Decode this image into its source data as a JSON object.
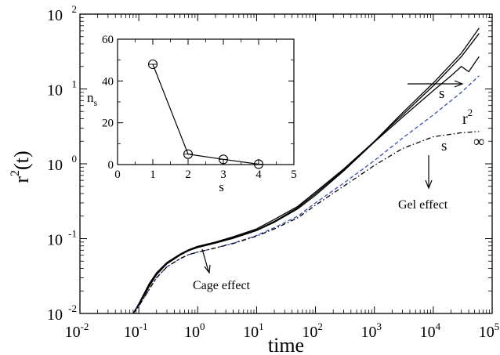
{
  "chart_data": [
    {
      "type": "line",
      "xlabel": "time",
      "ylabel_base": "r",
      "ylabel_sup": "2",
      "ylabel_tail": "(t)",
      "xscale": "log",
      "yscale": "log",
      "xlim": [
        0.01,
        100000
      ],
      "ylim": [
        0.01,
        100
      ],
      "x_ticks": [
        {
          "base": "10",
          "exp": "-2"
        },
        {
          "base": "10",
          "exp": "-1"
        },
        {
          "base": "10",
          "exp": "0"
        },
        {
          "base": "10",
          "exp": "1"
        },
        {
          "base": "10",
          "exp": "2"
        },
        {
          "base": "10",
          "exp": "3"
        },
        {
          "base": "10",
          "exp": "4"
        },
        {
          "base": "10",
          "exp": "5"
        }
      ],
      "y_ticks": [
        {
          "base": "10",
          "exp": "-2"
        },
        {
          "base": "10",
          "exp": "-1"
        },
        {
          "base": "10",
          "exp": "0"
        },
        {
          "base": "10",
          "exp": "1"
        },
        {
          "base": "10",
          "exp": "2"
        }
      ],
      "series": [
        {
          "style": "solid",
          "color": "#000000",
          "x": [
            0.08,
            0.1,
            0.15,
            0.2,
            0.3,
            0.5,
            0.7,
            1,
            2,
            4,
            10,
            20,
            50,
            100,
            300,
            1000,
            3000,
            10000,
            30000,
            60000
          ],
          "y": [
            0.01,
            0.0135,
            0.025,
            0.035,
            0.048,
            0.062,
            0.071,
            0.079,
            0.09,
            0.106,
            0.135,
            0.18,
            0.27,
            0.42,
            0.85,
            2.0,
            4.8,
            12,
            30,
            65
          ]
        },
        {
          "style": "solid",
          "color": "#000000",
          "x": [
            0.08,
            0.1,
            0.15,
            0.2,
            0.3,
            0.5,
            0.7,
            1,
            2,
            4,
            10,
            20,
            50,
            100,
            300,
            1000,
            3000,
            10000,
            30000,
            60000
          ],
          "y": [
            0.01,
            0.0132,
            0.024,
            0.034,
            0.047,
            0.061,
            0.07,
            0.077,
            0.088,
            0.103,
            0.13,
            0.17,
            0.26,
            0.4,
            0.82,
            2.0,
            4.5,
            11,
            27,
            55
          ]
        },
        {
          "style": "solid",
          "color": "#000000",
          "x": [
            0.08,
            0.1,
            0.15,
            0.2,
            0.3,
            0.5,
            0.7,
            1,
            2,
            4,
            10,
            20,
            50,
            100,
            300,
            1000,
            3000,
            10000,
            20000,
            30000,
            40000,
            60000
          ],
          "y": [
            0.01,
            0.013,
            0.023,
            0.033,
            0.046,
            0.06,
            0.069,
            0.076,
            0.087,
            0.101,
            0.128,
            0.165,
            0.25,
            0.38,
            0.8,
            1.95,
            4.2,
            9.5,
            15,
            20,
            17,
            27
          ]
        },
        {
          "style": "dashed",
          "color": "#3a4fb0",
          "x": [
            0.08,
            0.1,
            0.15,
            0.2,
            0.3,
            0.5,
            0.7,
            1,
            2,
            4,
            10,
            20,
            50,
            100,
            300,
            1000,
            3000,
            10000,
            30000,
            60000
          ],
          "y": [
            0.01,
            0.0125,
            0.021,
            0.03,
            0.042,
            0.054,
            0.061,
            0.066,
            0.075,
            0.087,
            0.11,
            0.14,
            0.2,
            0.3,
            0.55,
            1.1,
            2.2,
            4.5,
            9,
            15
          ]
        },
        {
          "style": "dashdot",
          "color": "#000000",
          "x": [
            0.08,
            0.1,
            0.15,
            0.2,
            0.3,
            0.5,
            0.7,
            1,
            2,
            4,
            10,
            20,
            50,
            100,
            300,
            1000,
            3000,
            10000,
            30000,
            60000
          ],
          "y": [
            0.01,
            0.0125,
            0.021,
            0.03,
            0.042,
            0.054,
            0.061,
            0.066,
            0.075,
            0.086,
            0.108,
            0.135,
            0.19,
            0.28,
            0.5,
            0.95,
            1.6,
            2.3,
            2.6,
            2.7
          ]
        }
      ],
      "annotations": [
        {
          "id": "s-arrow",
          "text": "s"
        },
        {
          "id": "r2",
          "text": "r",
          "sup": "2"
        },
        {
          "id": "s-inf",
          "text": "s",
          "sub": "∞"
        },
        {
          "id": "gel",
          "text": "Gel effect"
        },
        {
          "id": "cage",
          "text": "Cage effect"
        }
      ]
    },
    {
      "type": "line",
      "inset": true,
      "xlabel": "s",
      "ylabel_base": "n",
      "ylabel_sub": "s",
      "xlim": [
        0,
        5
      ],
      "ylim": [
        0,
        60
      ],
      "x_ticks": [
        "0",
        "1",
        "2",
        "3",
        "4",
        "5"
      ],
      "y_ticks": [
        "0",
        "20",
        "40",
        "60"
      ],
      "markers": "open-circle",
      "x": [
        1,
        2,
        3,
        4
      ],
      "y": [
        48,
        5,
        2.5,
        0.2
      ]
    }
  ]
}
